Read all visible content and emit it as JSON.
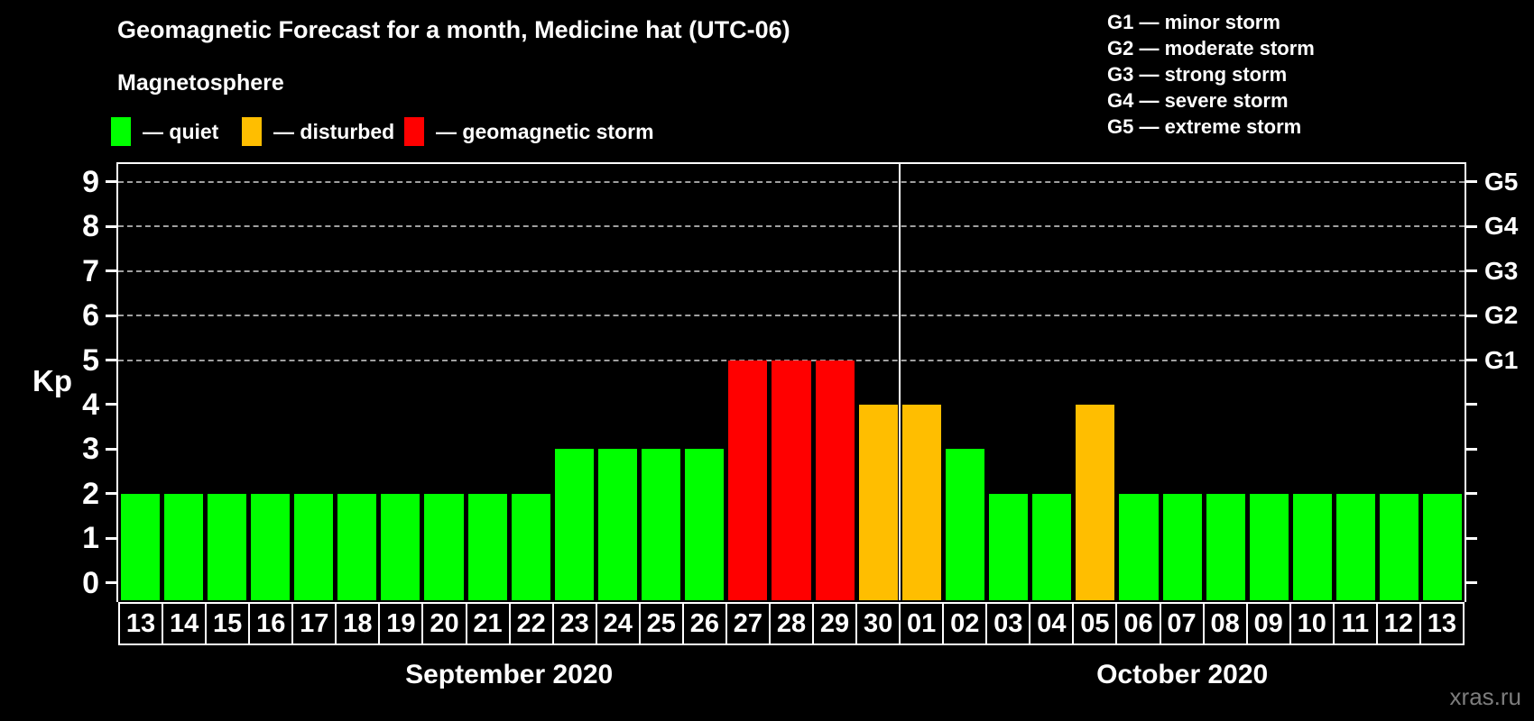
{
  "title": "Geomagnetic Forecast for a month, Medicine hat (UTC-06)",
  "subtitle": "Magnetosphere",
  "magnetosphere_legend": [
    {
      "id": "quiet",
      "label": "— quiet",
      "color": "#00ff00"
    },
    {
      "id": "disturbed",
      "label": "— disturbed",
      "color": "#ffbe00"
    },
    {
      "id": "storm",
      "label": "— geomagnetic storm",
      "color": "#ff0000"
    }
  ],
  "g_scale_legend": [
    "G1 — minor storm",
    "G2 — moderate storm",
    "G3 — strong storm",
    "G4 — severe storm",
    "G5 — extreme storm"
  ],
  "y_axis": {
    "label": "Kp",
    "ticks": [
      0,
      1,
      2,
      3,
      4,
      5,
      6,
      7,
      8,
      9
    ]
  },
  "right_axis": {
    "ticks": [
      0,
      1,
      2,
      3,
      4,
      5,
      6,
      7,
      8,
      9
    ],
    "labels": [
      {
        "text": "G1",
        "kp": 5
      },
      {
        "text": "G2",
        "kp": 6
      },
      {
        "text": "G3",
        "kp": 7
      },
      {
        "text": "G4",
        "kp": 8
      },
      {
        "text": "G5",
        "kp": 9
      }
    ]
  },
  "months": [
    {
      "label": "September 2020",
      "days": 18
    },
    {
      "label": "October 2020",
      "days": 13
    }
  ],
  "watermark": "xras.ru",
  "chart_data": {
    "type": "bar",
    "title": "Geomagnetic Forecast for a month, Medicine hat (UTC-06)",
    "ylabel": "Kp",
    "ylim": [
      0,
      9
    ],
    "gridlines_at": [
      5,
      6,
      7,
      8,
      9
    ],
    "legend_position": "top",
    "status_colors": {
      "quiet": "#00ff00",
      "disturbed": "#ffbe00",
      "storm": "#ff0000"
    },
    "points": [
      {
        "day": "13",
        "kp": 2,
        "status": "quiet"
      },
      {
        "day": "14",
        "kp": 2,
        "status": "quiet"
      },
      {
        "day": "15",
        "kp": 2,
        "status": "quiet"
      },
      {
        "day": "16",
        "kp": 2,
        "status": "quiet"
      },
      {
        "day": "17",
        "kp": 2,
        "status": "quiet"
      },
      {
        "day": "18",
        "kp": 2,
        "status": "quiet"
      },
      {
        "day": "19",
        "kp": 2,
        "status": "quiet"
      },
      {
        "day": "20",
        "kp": 2,
        "status": "quiet"
      },
      {
        "day": "21",
        "kp": 2,
        "status": "quiet"
      },
      {
        "day": "22",
        "kp": 2,
        "status": "quiet"
      },
      {
        "day": "23",
        "kp": 3,
        "status": "quiet"
      },
      {
        "day": "24",
        "kp": 3,
        "status": "quiet"
      },
      {
        "day": "25",
        "kp": 3,
        "status": "quiet"
      },
      {
        "day": "26",
        "kp": 3,
        "status": "quiet"
      },
      {
        "day": "27",
        "kp": 5,
        "status": "storm"
      },
      {
        "day": "28",
        "kp": 5,
        "status": "storm"
      },
      {
        "day": "29",
        "kp": 5,
        "status": "storm"
      },
      {
        "day": "30",
        "kp": 4,
        "status": "disturbed"
      },
      {
        "day": "01",
        "kp": 4,
        "status": "disturbed"
      },
      {
        "day": "02",
        "kp": 3,
        "status": "quiet"
      },
      {
        "day": "03",
        "kp": 2,
        "status": "quiet"
      },
      {
        "day": "04",
        "kp": 2,
        "status": "quiet"
      },
      {
        "day": "05",
        "kp": 4,
        "status": "disturbed"
      },
      {
        "day": "06",
        "kp": 2,
        "status": "quiet"
      },
      {
        "day": "07",
        "kp": 2,
        "status": "quiet"
      },
      {
        "day": "08",
        "kp": 2,
        "status": "quiet"
      },
      {
        "day": "09",
        "kp": 2,
        "status": "quiet"
      },
      {
        "day": "10",
        "kp": 2,
        "status": "quiet"
      },
      {
        "day": "11",
        "kp": 2,
        "status": "quiet"
      },
      {
        "day": "12",
        "kp": 2,
        "status": "quiet"
      },
      {
        "day": "13",
        "kp": 2,
        "status": "quiet"
      }
    ]
  }
}
